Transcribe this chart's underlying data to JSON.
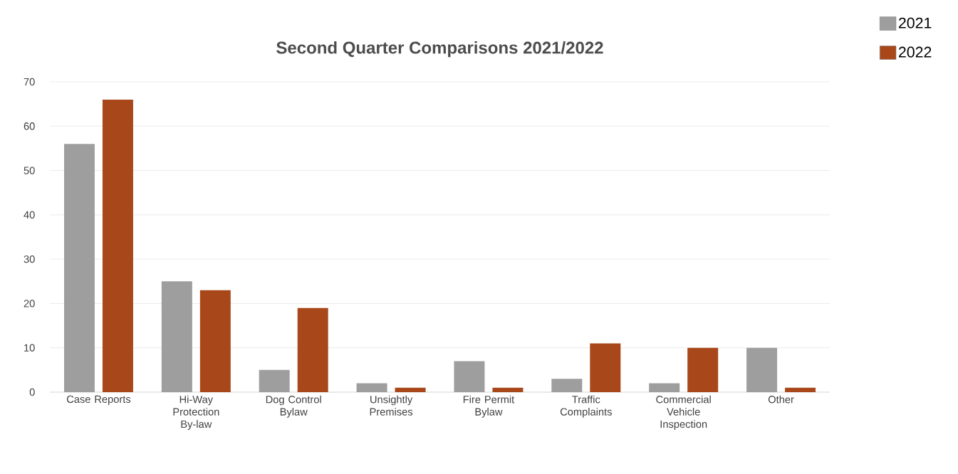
{
  "chart_data": {
    "type": "bar",
    "title": "Second Quarter Comparisons  2021/2022",
    "categories": [
      "Case Reports",
      "Hi-Way Protection By-law",
      "Dog Control Bylaw",
      "Unsightly Premises",
      "Fire Permit Bylaw",
      "Traffic Complaints",
      "Commercial Vehicle Inspection",
      "Other"
    ],
    "series": [
      {
        "name": "2021",
        "color": "#9e9e9e",
        "values": [
          56,
          25,
          5,
          2,
          7,
          3,
          2,
          10
        ]
      },
      {
        "name": "2022",
        "color": "#a8481a",
        "values": [
          66,
          23,
          19,
          1,
          1,
          11,
          10,
          1
        ]
      }
    ],
    "ylim": [
      0,
      70
    ],
    "yticks": [
      0,
      10,
      20,
      30,
      40,
      50,
      60,
      70
    ],
    "grid": "y",
    "legend": "top right"
  }
}
